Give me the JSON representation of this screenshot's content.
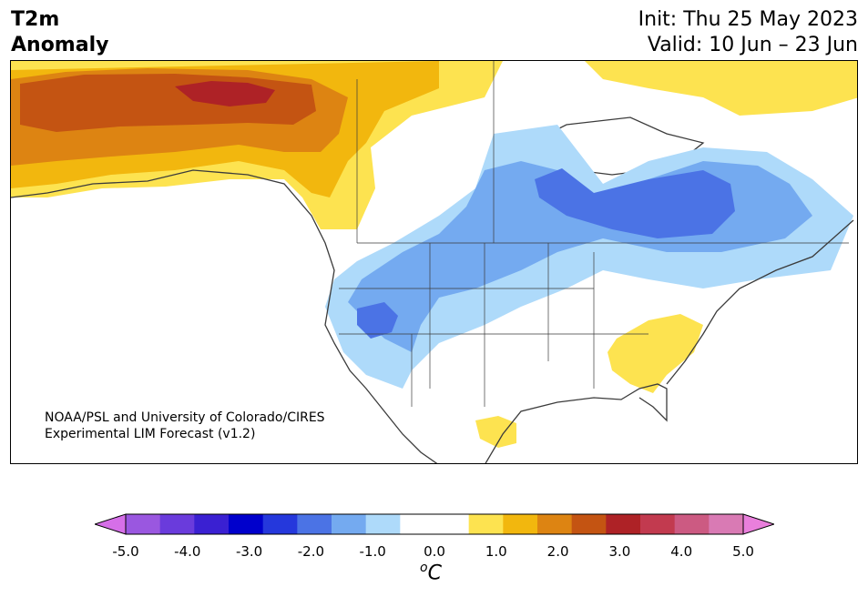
{
  "title": {
    "left_line1": "T2m",
    "left_line2": "Anomaly",
    "init": "Init: Thu 25 May 2023",
    "valid": "Valid: 10 Jun – 23 Jun"
  },
  "credit": {
    "line1": "NOAA/PSL and University of Colorado/CIRES",
    "line2": "Experimental LIM Forecast (v1.2)"
  },
  "colorbar": {
    "unit_sup": "o",
    "unit_main": "C",
    "ticks": [
      "-5.0",
      "-4.0",
      "-3.0",
      "-2.0",
      "-1.0",
      "0.0",
      "1.0",
      "2.0",
      "3.0",
      "4.0",
      "5.0"
    ],
    "tick_values": [
      -5,
      -4,
      -3,
      -2,
      -1,
      0,
      1,
      2,
      3,
      4,
      5
    ],
    "under_color": "#d66fe8",
    "over_color": "#e97fdc",
    "colors": [
      "#9a57e0",
      "#6a3bdc",
      "#3a20d2",
      "#0000cc",
      "#2538dc",
      "#4b73e5",
      "#74aaf0",
      "#aedafa",
      "#ffffff",
      "#ffffff",
      "#fde350",
      "#f2b70e",
      "#dd8412",
      "#c45412",
      "#ae2226",
      "#c23a4f",
      "#cc5a82",
      "#d97ab4"
    ]
  },
  "colors": {
    "land_outline": "#3b3b3b",
    "strong_warm": "#ae2226",
    "warm_3": "#c45412",
    "warm_2": "#dd8412",
    "warm_1": "#f2b70e",
    "warm_05": "#fde350",
    "cool_05": "#aedafa",
    "cool_1": "#74aaf0",
    "cool_15": "#4b73e5"
  }
}
